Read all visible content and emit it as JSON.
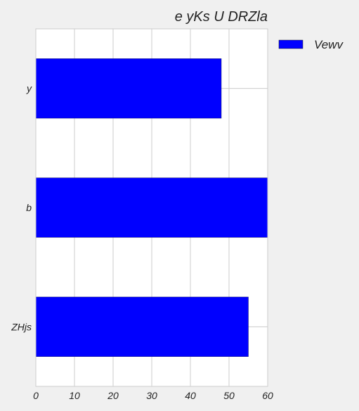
{
  "chart_data": {
    "type": "bar",
    "orientation": "horizontal",
    "title": "e  yKs U DRZla",
    "xlabel": "",
    "ylabel": "",
    "categories": [
      "y",
      "b",
      "ZHjs"
    ],
    "series": [
      {
        "name": "Vewv",
        "values": [
          48,
          60,
          55
        ],
        "color": "#0000ff"
      }
    ],
    "xlim": [
      0,
      60
    ],
    "xticks": [
      0,
      10,
      20,
      30,
      40,
      50,
      60
    ],
    "grid": true,
    "legend_position": "top-right-outside"
  }
}
